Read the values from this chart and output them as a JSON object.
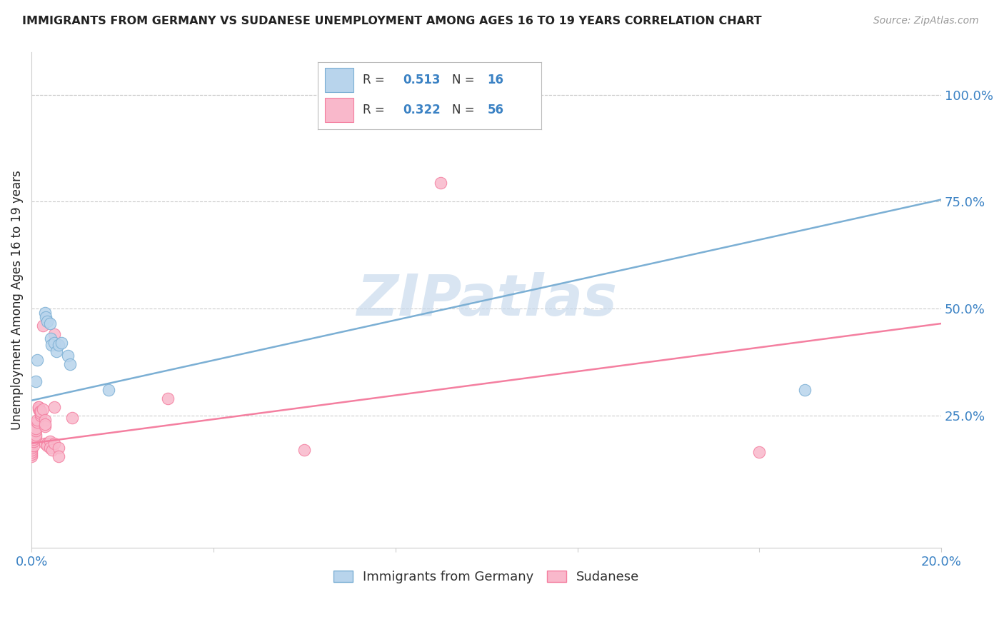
{
  "title": "IMMIGRANTS FROM GERMANY VS SUDANESE UNEMPLOYMENT AMONG AGES 16 TO 19 YEARS CORRELATION CHART",
  "source": "Source: ZipAtlas.com",
  "ylabel": "Unemployment Among Ages 16 to 19 years",
  "watermark": "ZIPatlas",
  "legend_label_blue": "Immigrants from Germany",
  "legend_label_pink": "Sudanese",
  "blue_color": "#7BAFD4",
  "blue_color_light": "#B8D4EC",
  "pink_color": "#F47FA0",
  "pink_color_light": "#F9B8CB",
  "blue_scatter": [
    [
      0.001,
      0.33
    ],
    [
      0.0012,
      0.38
    ],
    [
      0.003,
      0.49
    ],
    [
      0.0032,
      0.48
    ],
    [
      0.0035,
      0.47
    ],
    [
      0.004,
      0.465
    ],
    [
      0.0042,
      0.43
    ],
    [
      0.0043,
      0.415
    ],
    [
      0.005,
      0.42
    ],
    [
      0.0055,
      0.4
    ],
    [
      0.006,
      0.415
    ],
    [
      0.0065,
      0.42
    ],
    [
      0.008,
      0.39
    ],
    [
      0.0085,
      0.37
    ],
    [
      0.017,
      0.31
    ],
    [
      0.17,
      0.31
    ]
  ],
  "pink_scatter": [
    [
      0.0,
      0.155
    ],
    [
      0.0,
      0.16
    ],
    [
      0.0,
      0.165
    ],
    [
      0.0,
      0.17
    ],
    [
      0.0,
      0.175
    ],
    [
      0.0,
      0.18
    ],
    [
      0.0,
      0.185
    ],
    [
      0.0,
      0.19
    ],
    [
      0.0,
      0.195
    ],
    [
      0.0,
      0.2
    ],
    [
      0.0,
      0.205
    ],
    [
      0.0,
      0.21
    ],
    [
      0.0,
      0.215
    ],
    [
      0.0,
      0.22
    ],
    [
      0.0005,
      0.18
    ],
    [
      0.0005,
      0.19
    ],
    [
      0.0005,
      0.195
    ],
    [
      0.0005,
      0.2
    ],
    [
      0.0005,
      0.21
    ],
    [
      0.0005,
      0.215
    ],
    [
      0.0005,
      0.22
    ],
    [
      0.0005,
      0.225
    ],
    [
      0.001,
      0.2
    ],
    [
      0.001,
      0.205
    ],
    [
      0.001,
      0.215
    ],
    [
      0.001,
      0.22
    ],
    [
      0.0012,
      0.235
    ],
    [
      0.0012,
      0.24
    ],
    [
      0.0015,
      0.27
    ],
    [
      0.0015,
      0.265
    ],
    [
      0.0015,
      0.27
    ],
    [
      0.0018,
      0.26
    ],
    [
      0.002,
      0.25
    ],
    [
      0.002,
      0.255
    ],
    [
      0.002,
      0.26
    ],
    [
      0.0025,
      0.46
    ],
    [
      0.0025,
      0.265
    ],
    [
      0.003,
      0.24
    ],
    [
      0.003,
      0.225
    ],
    [
      0.003,
      0.23
    ],
    [
      0.003,
      0.185
    ],
    [
      0.0035,
      0.185
    ],
    [
      0.0035,
      0.18
    ],
    [
      0.004,
      0.19
    ],
    [
      0.004,
      0.175
    ],
    [
      0.0045,
      0.17
    ],
    [
      0.005,
      0.44
    ],
    [
      0.005,
      0.27
    ],
    [
      0.005,
      0.185
    ],
    [
      0.006,
      0.175
    ],
    [
      0.006,
      0.155
    ],
    [
      0.009,
      0.245
    ],
    [
      0.03,
      0.29
    ],
    [
      0.06,
      0.17
    ],
    [
      0.09,
      0.795
    ],
    [
      0.16,
      0.165
    ]
  ],
  "xlim": [
    0.0,
    0.2
  ],
  "ylim": [
    -0.06,
    1.1
  ],
  "blue_line_x": [
    0.0,
    0.2
  ],
  "blue_line_y": [
    0.285,
    0.755
  ],
  "pink_line_x": [
    0.0,
    0.2
  ],
  "pink_line_y": [
    0.185,
    0.465
  ],
  "right_yticks": [
    0.0,
    0.25,
    0.5,
    0.75,
    1.0
  ],
  "right_yticklabels": [
    "",
    "25.0%",
    "50.0%",
    "75.0%",
    "100.0%"
  ],
  "title_color": "#222222",
  "axis_color": "#3B82C4",
  "source_color": "#999999",
  "grid_color": "#CCCCCC",
  "background_color": "#ffffff"
}
